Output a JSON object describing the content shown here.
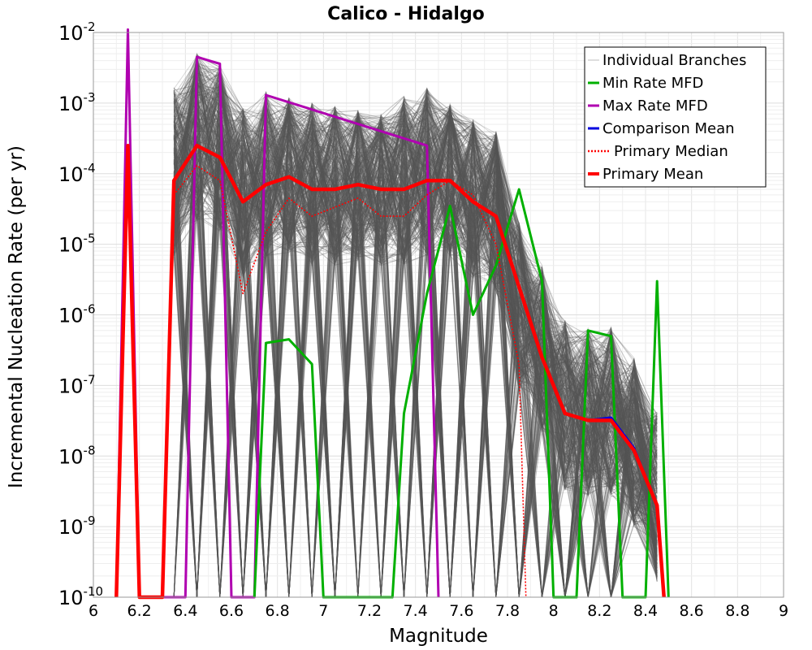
{
  "chart_data": {
    "type": "line",
    "title": "Calico - Hidalgo",
    "xlabel": "Magnitude",
    "ylabel": "Incremental Nucleation Rate (per yr)",
    "xlim": [
      6,
      9
    ],
    "ylim": [
      1e-10,
      0.01
    ],
    "yscale": "log",
    "grid": true,
    "legend_position": "top-right",
    "x_ticks": [
      "6",
      "6.2",
      "6.4",
      "6.6",
      "6.8",
      "7",
      "7.2",
      "7.4",
      "7.6",
      "7.8",
      "8",
      "8.2",
      "8.4",
      "8.6",
      "8.8",
      "9"
    ],
    "y_ticks": [
      {
        "base": "10",
        "exp": "-10"
      },
      {
        "base": "10",
        "exp": "-9"
      },
      {
        "base": "10",
        "exp": "-8"
      },
      {
        "base": "10",
        "exp": "-7"
      },
      {
        "base": "10",
        "exp": "-6"
      },
      {
        "base": "10",
        "exp": "-5"
      },
      {
        "base": "10",
        "exp": "-4"
      },
      {
        "base": "10",
        "exp": "-3"
      },
      {
        "base": "10",
        "exp": "-2"
      }
    ],
    "legend": [
      {
        "label": "Individual Branches",
        "color": "#c8c8c8",
        "style": "thin"
      },
      {
        "label": "Min Rate MFD",
        "color": "#00b000",
        "style": "solid"
      },
      {
        "label": "Max Rate MFD",
        "color": "#b000b0",
        "style": "solid"
      },
      {
        "label": "Comparison Mean",
        "color": "#0000e0",
        "style": "solid"
      },
      {
        "label": "Primary Median",
        "color": "#ff0000",
        "style": "dotted"
      },
      {
        "label": "Primary Mean",
        "color": "#ff0000",
        "style": "thick"
      }
    ],
    "series": [
      {
        "name": "Max Rate MFD",
        "color": "#b000b0",
        "points": [
          [
            6.1,
            1e-10
          ],
          [
            6.15,
            0.011
          ],
          [
            6.2,
            1e-10
          ],
          [
            6.4,
            1e-10
          ],
          [
            6.45,
            0.0045
          ],
          [
            6.55,
            0.0036
          ],
          [
            6.6,
            1e-10
          ],
          [
            6.7,
            1e-10
          ],
          [
            6.75,
            0.0013
          ],
          [
            7.45,
            0.00025
          ],
          [
            7.5,
            1e-10
          ]
        ]
      },
      {
        "name": "Min Rate MFD",
        "color": "#00b000",
        "points": [
          [
            6.7,
            1e-10
          ],
          [
            6.75,
            4e-07
          ],
          [
            6.85,
            4.5e-07
          ],
          [
            6.95,
            2e-07
          ],
          [
            7.0,
            1e-10
          ],
          [
            7.3,
            1e-10
          ],
          [
            7.35,
            4e-08
          ],
          [
            7.45,
            2e-06
          ],
          [
            7.55,
            3.5e-05
          ],
          [
            7.65,
            1e-06
          ],
          [
            7.75,
            5e-06
          ],
          [
            7.85,
            6e-05
          ],
          [
            7.95,
            3e-06
          ],
          [
            8.0,
            1e-10
          ],
          [
            8.1,
            1e-10
          ],
          [
            8.15,
            6e-07
          ],
          [
            8.25,
            5e-07
          ],
          [
            8.3,
            1e-10
          ],
          [
            8.4,
            1e-10
          ],
          [
            8.45,
            3e-06
          ],
          [
            8.5,
            1e-10
          ]
        ]
      },
      {
        "name": "Comparison Mean",
        "color": "#0000e0",
        "points": [
          [
            8.15,
            3.2e-08
          ],
          [
            8.25,
            3.5e-08
          ],
          [
            8.35,
            1.3e-08
          ],
          [
            8.45,
            2e-09
          ]
        ]
      },
      {
        "name": "Primary Median",
        "color": "#ff0000",
        "points": [
          [
            6.35,
            5e-05
          ],
          [
            6.45,
            0.00013
          ],
          [
            6.55,
            8e-05
          ],
          [
            6.65,
            2e-06
          ],
          [
            6.75,
            1.5e-05
          ],
          [
            6.85,
            4.5e-05
          ],
          [
            6.95,
            2.5e-05
          ],
          [
            7.15,
            4.5e-05
          ],
          [
            7.25,
            2.5e-05
          ],
          [
            7.35,
            2.5e-05
          ],
          [
            7.45,
            5e-05
          ],
          [
            7.55,
            8e-05
          ],
          [
            7.65,
            5e-05
          ],
          [
            7.75,
            1e-05
          ],
          [
            7.85,
            2e-07
          ],
          [
            7.88,
            1e-10
          ]
        ]
      },
      {
        "name": "Primary Mean",
        "color": "#ff0000",
        "points": [
          [
            6.1,
            1e-10
          ],
          [
            6.15,
            0.00025
          ],
          [
            6.2,
            1e-10
          ],
          [
            6.3,
            1e-10
          ],
          [
            6.35,
            8e-05
          ],
          [
            6.45,
            0.00025
          ],
          [
            6.55,
            0.00017
          ],
          [
            6.65,
            4e-05
          ],
          [
            6.75,
            7e-05
          ],
          [
            6.85,
            9e-05
          ],
          [
            6.95,
            6e-05
          ],
          [
            7.05,
            6e-05
          ],
          [
            7.15,
            7e-05
          ],
          [
            7.25,
            6e-05
          ],
          [
            7.35,
            6e-05
          ],
          [
            7.45,
            8e-05
          ],
          [
            7.55,
            8e-05
          ],
          [
            7.65,
            4e-05
          ],
          [
            7.75,
            2.5e-05
          ],
          [
            7.95,
            2.5e-07
          ],
          [
            8.05,
            4e-08
          ],
          [
            8.15,
            3.2e-08
          ],
          [
            8.25,
            3.2e-08
          ],
          [
            8.35,
            1.2e-08
          ],
          [
            8.45,
            2e-09
          ],
          [
            8.48,
            1e-10
          ]
        ]
      }
    ]
  }
}
